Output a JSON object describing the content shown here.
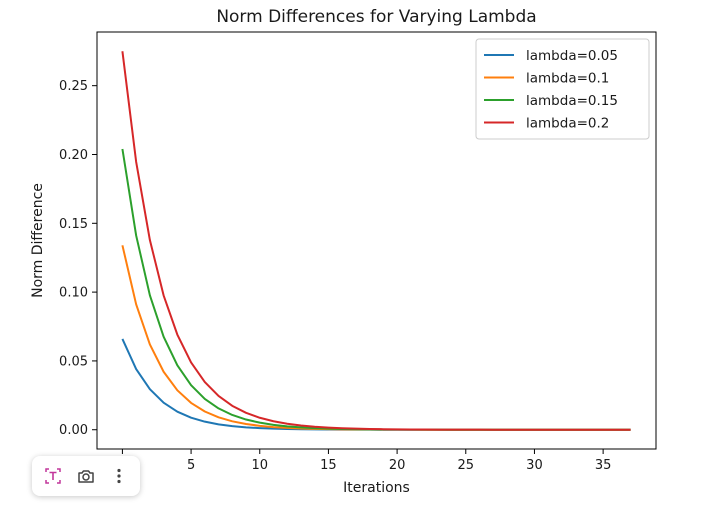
{
  "chart_data": {
    "type": "line",
    "title": "Norm Differences for Varying Lambda",
    "xlabel": "Iterations",
    "ylabel": "Norm Difference",
    "xlim": [
      -1.85,
      38.85
    ],
    "ylim": [
      -0.014,
      0.289
    ],
    "xticks": [
      0,
      5,
      10,
      15,
      20,
      25,
      30,
      35
    ],
    "xtick_labels": [
      "0",
      "5",
      "10",
      "15",
      "20",
      "25",
      "30",
      "35"
    ],
    "yticks": [
      0.0,
      0.05,
      0.1,
      0.15,
      0.2,
      0.25
    ],
    "ytick_labels": [
      "0.00",
      "0.05",
      "0.10",
      "0.15",
      "0.20",
      "0.25"
    ],
    "grid": false,
    "legend_position": "top-right",
    "series": [
      {
        "name": "lambda=0.05",
        "color": "#1f77b4",
        "start": 0.066,
        "ratio": 0.668,
        "n_points": 38
      },
      {
        "name": "lambda=0.1",
        "color": "#ff7f0e",
        "start": 0.134,
        "ratio": 0.68,
        "n_points": 38
      },
      {
        "name": "lambda=0.15",
        "color": "#2ca02c",
        "start": 0.204,
        "ratio": 0.692,
        "n_points": 38
      },
      {
        "name": "lambda=0.2",
        "color": "#d62728",
        "start": 0.275,
        "ratio": 0.708,
        "n_points": 38
      }
    ]
  },
  "toolbar": {
    "buttons": [
      {
        "name": "text-select",
        "icon": "text-icon"
      },
      {
        "name": "screenshot",
        "icon": "camera-icon"
      },
      {
        "name": "more",
        "icon": "more-vertical-icon"
      }
    ]
  }
}
